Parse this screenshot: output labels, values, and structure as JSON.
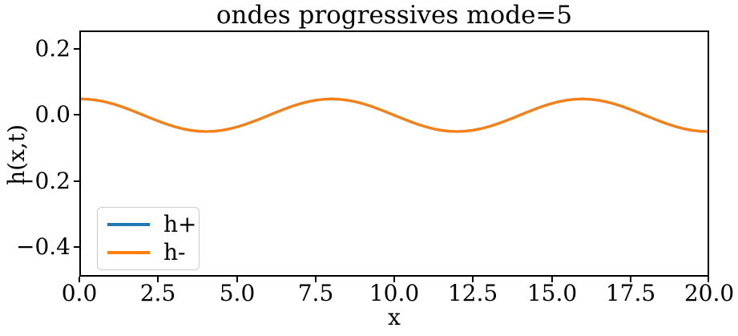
{
  "figure": {
    "background": "#ffffff",
    "title": "ondes progressives mode=5"
  },
  "axes": {
    "xlabel": "x",
    "ylabel": "h(x,t)",
    "xticks": [
      "0.0",
      "2.5",
      "5.0",
      "7.5",
      "10.0",
      "12.5",
      "15.0",
      "17.5",
      "20.0"
    ],
    "yticks": [
      "0.2",
      "0.0",
      "−0.2",
      "−0.4"
    ],
    "spine_color": "#000000"
  },
  "legend": {
    "entries": [
      {
        "label": "h+",
        "color": "#1f77b4"
      },
      {
        "label": "h-",
        "color": "#ff7f0e"
      }
    ]
  },
  "chart_data": {
    "type": "line",
    "title": "ondes progressives mode=5",
    "xlabel": "x",
    "ylabel": "h(x,t)",
    "xlim": [
      0,
      20
    ],
    "ylim": [
      -0.49,
      0.255
    ],
    "xticks": [
      0,
      2.5,
      5,
      7.5,
      10,
      12.5,
      15,
      17.5,
      20
    ],
    "yticks": [
      0.2,
      0.0,
      -0.2,
      -0.4
    ],
    "grid": false,
    "legend_position": "lower left",
    "amplitude": 0.05,
    "wavelength": 8,
    "x": [
      0,
      0.25,
      0.5,
      0.75,
      1,
      1.25,
      1.5,
      1.75,
      2,
      2.25,
      2.5,
      2.75,
      3,
      3.25,
      3.5,
      3.75,
      4,
      4.25,
      4.5,
      4.75,
      5,
      5.25,
      5.5,
      5.75,
      6,
      6.25,
      6.5,
      6.75,
      7,
      7.25,
      7.5,
      7.75,
      8,
      8.25,
      8.5,
      8.75,
      9,
      9.25,
      9.5,
      9.75,
      10,
      10.25,
      10.5,
      10.75,
      11,
      11.25,
      11.5,
      11.75,
      12,
      12.25,
      12.5,
      12.75,
      13,
      13.25,
      13.5,
      13.75,
      14,
      14.25,
      14.5,
      14.75,
      15,
      15.25,
      15.5,
      15.75,
      16,
      16.25,
      16.5,
      16.75,
      17,
      17.25,
      17.5,
      17.75,
      18,
      18.25,
      18.5,
      18.75,
      19,
      19.25,
      19.5,
      19.75,
      20
    ],
    "series": [
      {
        "name": "h+",
        "color": "#1f77b4",
        "linewidth": 3.2,
        "values": [
          0.05,
          0.049,
          0.0462,
          0.0416,
          0.0354,
          0.0278,
          0.0191,
          0.0098,
          0,
          -0.0098,
          -0.0191,
          -0.0278,
          -0.0354,
          -0.0416,
          -0.0462,
          -0.049,
          -0.05,
          -0.049,
          -0.0462,
          -0.0416,
          -0.0354,
          -0.0278,
          -0.0191,
          -0.0098,
          0,
          0.0098,
          0.0191,
          0.0278,
          0.0354,
          0.0416,
          0.0462,
          0.049,
          0.05,
          0.049,
          0.0462,
          0.0416,
          0.0354,
          0.0278,
          0.0191,
          0.0098,
          0,
          -0.0098,
          -0.0191,
          -0.0278,
          -0.0354,
          -0.0416,
          -0.0462,
          -0.049,
          -0.05,
          -0.049,
          -0.0462,
          -0.0416,
          -0.0354,
          -0.0278,
          -0.0191,
          -0.0098,
          0,
          0.0098,
          0.0191,
          0.0278,
          0.0354,
          0.0416,
          0.0462,
          0.049,
          0.05,
          0.049,
          0.0462,
          0.0416,
          0.0354,
          0.0278,
          0.0191,
          0.0098,
          0,
          -0.0098,
          -0.0191,
          -0.0278,
          -0.0354,
          -0.0416,
          -0.0462,
          -0.049,
          -0.05
        ]
      },
      {
        "name": "h-",
        "color": "#ff7f0e",
        "linewidth": 3.2,
        "values": [
          0.05,
          0.049,
          0.0462,
          0.0416,
          0.0354,
          0.0278,
          0.0191,
          0.0098,
          0,
          -0.0098,
          -0.0191,
          -0.0278,
          -0.0354,
          -0.0416,
          -0.0462,
          -0.049,
          -0.05,
          -0.049,
          -0.0462,
          -0.0416,
          -0.0354,
          -0.0278,
          -0.0191,
          -0.0098,
          0,
          0.0098,
          0.0191,
          0.0278,
          0.0354,
          0.0416,
          0.0462,
          0.049,
          0.05,
          0.049,
          0.0462,
          0.0416,
          0.0354,
          0.0278,
          0.0191,
          0.0098,
          0,
          -0.0098,
          -0.0191,
          -0.0278,
          -0.0354,
          -0.0416,
          -0.0462,
          -0.049,
          -0.05,
          -0.049,
          -0.0462,
          -0.0416,
          -0.0354,
          -0.0278,
          -0.0191,
          -0.0098,
          0,
          0.0098,
          0.0191,
          0.0278,
          0.0354,
          0.0416,
          0.0462,
          0.049,
          0.05,
          0.049,
          0.0462,
          0.0416,
          0.0354,
          0.0278,
          0.0191,
          0.0098,
          0,
          -0.0098,
          -0.0191,
          -0.0278,
          -0.0354,
          -0.0416,
          -0.0462,
          -0.049,
          -0.05
        ]
      }
    ]
  }
}
